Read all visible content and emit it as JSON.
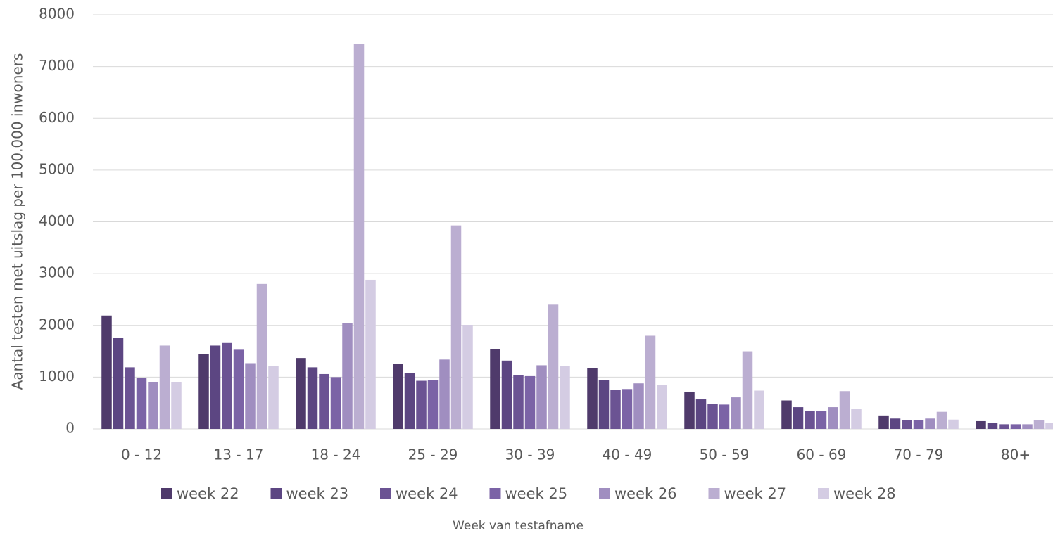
{
  "chart_data": {
    "type": "bar",
    "y_axis_label": "Aantal testen met uitslag per 100.000 inwoners",
    "x_axis_label": "Week van testafname",
    "categories": [
      "0 - 12",
      "13 - 17",
      "18 - 24",
      "25 - 29",
      "30 - 39",
      "40 - 49",
      "50 - 59",
      "60 - 69",
      "70 - 79",
      "80+"
    ],
    "series": [
      {
        "name": "week 22",
        "color": "#4f3a6b",
        "values": [
          2190,
          1440,
          1370,
          1260,
          1540,
          1170,
          720,
          550,
          260,
          150
        ]
      },
      {
        "name": "week 23",
        "color": "#5c4682",
        "values": [
          1760,
          1610,
          1190,
          1080,
          1320,
          950,
          570,
          420,
          200,
          110
        ]
      },
      {
        "name": "week 24",
        "color": "#6b5393",
        "values": [
          1190,
          1660,
          1060,
          930,
          1040,
          760,
          480,
          340,
          170,
          90
        ]
      },
      {
        "name": "week 25",
        "color": "#7b63a6",
        "values": [
          980,
          1530,
          1000,
          950,
          1020,
          770,
          470,
          340,
          170,
          90
        ]
      },
      {
        "name": "week 26",
        "color": "#a08ec0",
        "values": [
          910,
          1270,
          2050,
          1340,
          1230,
          880,
          610,
          420,
          200,
          90
        ]
      },
      {
        "name": "week 27",
        "color": "#bbaed1",
        "values": [
          1610,
          2800,
          7430,
          3930,
          2400,
          1800,
          1500,
          730,
          330,
          170
        ]
      },
      {
        "name": "week 28",
        "color": "#d4cce3",
        "values": [
          910,
          1210,
          2880,
          2010,
          1210,
          850,
          740,
          380,
          180,
          110
        ]
      }
    ],
    "ylim": [
      0,
      8000
    ],
    "yticks": [
      0,
      1000,
      2000,
      3000,
      4000,
      5000,
      6000,
      7000,
      8000
    ],
    "grid": true,
    "legend": "bottom"
  }
}
